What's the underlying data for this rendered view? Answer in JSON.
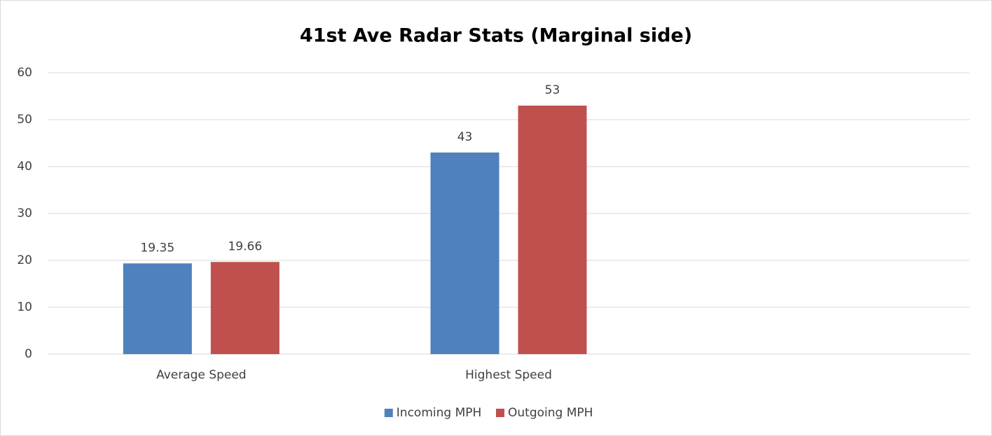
{
  "chart_data": {
    "type": "bar",
    "title": "41st Ave Radar Stats (Marginal side)",
    "categories": [
      "Average Speed",
      "Highest Speed",
      null
    ],
    "series": [
      {
        "name": "Incoming MPH",
        "color": "#4f81bd",
        "values": [
          19.35,
          43,
          null
        ]
      },
      {
        "name": "Outgoing MPH",
        "color": "#c0504d",
        "values": [
          19.66,
          53,
          null
        ]
      }
    ],
    "ylim": [
      0,
      60
    ],
    "yticks": [
      0,
      10,
      20,
      30,
      40,
      50,
      60
    ],
    "grid": true,
    "legend": "bottom"
  }
}
